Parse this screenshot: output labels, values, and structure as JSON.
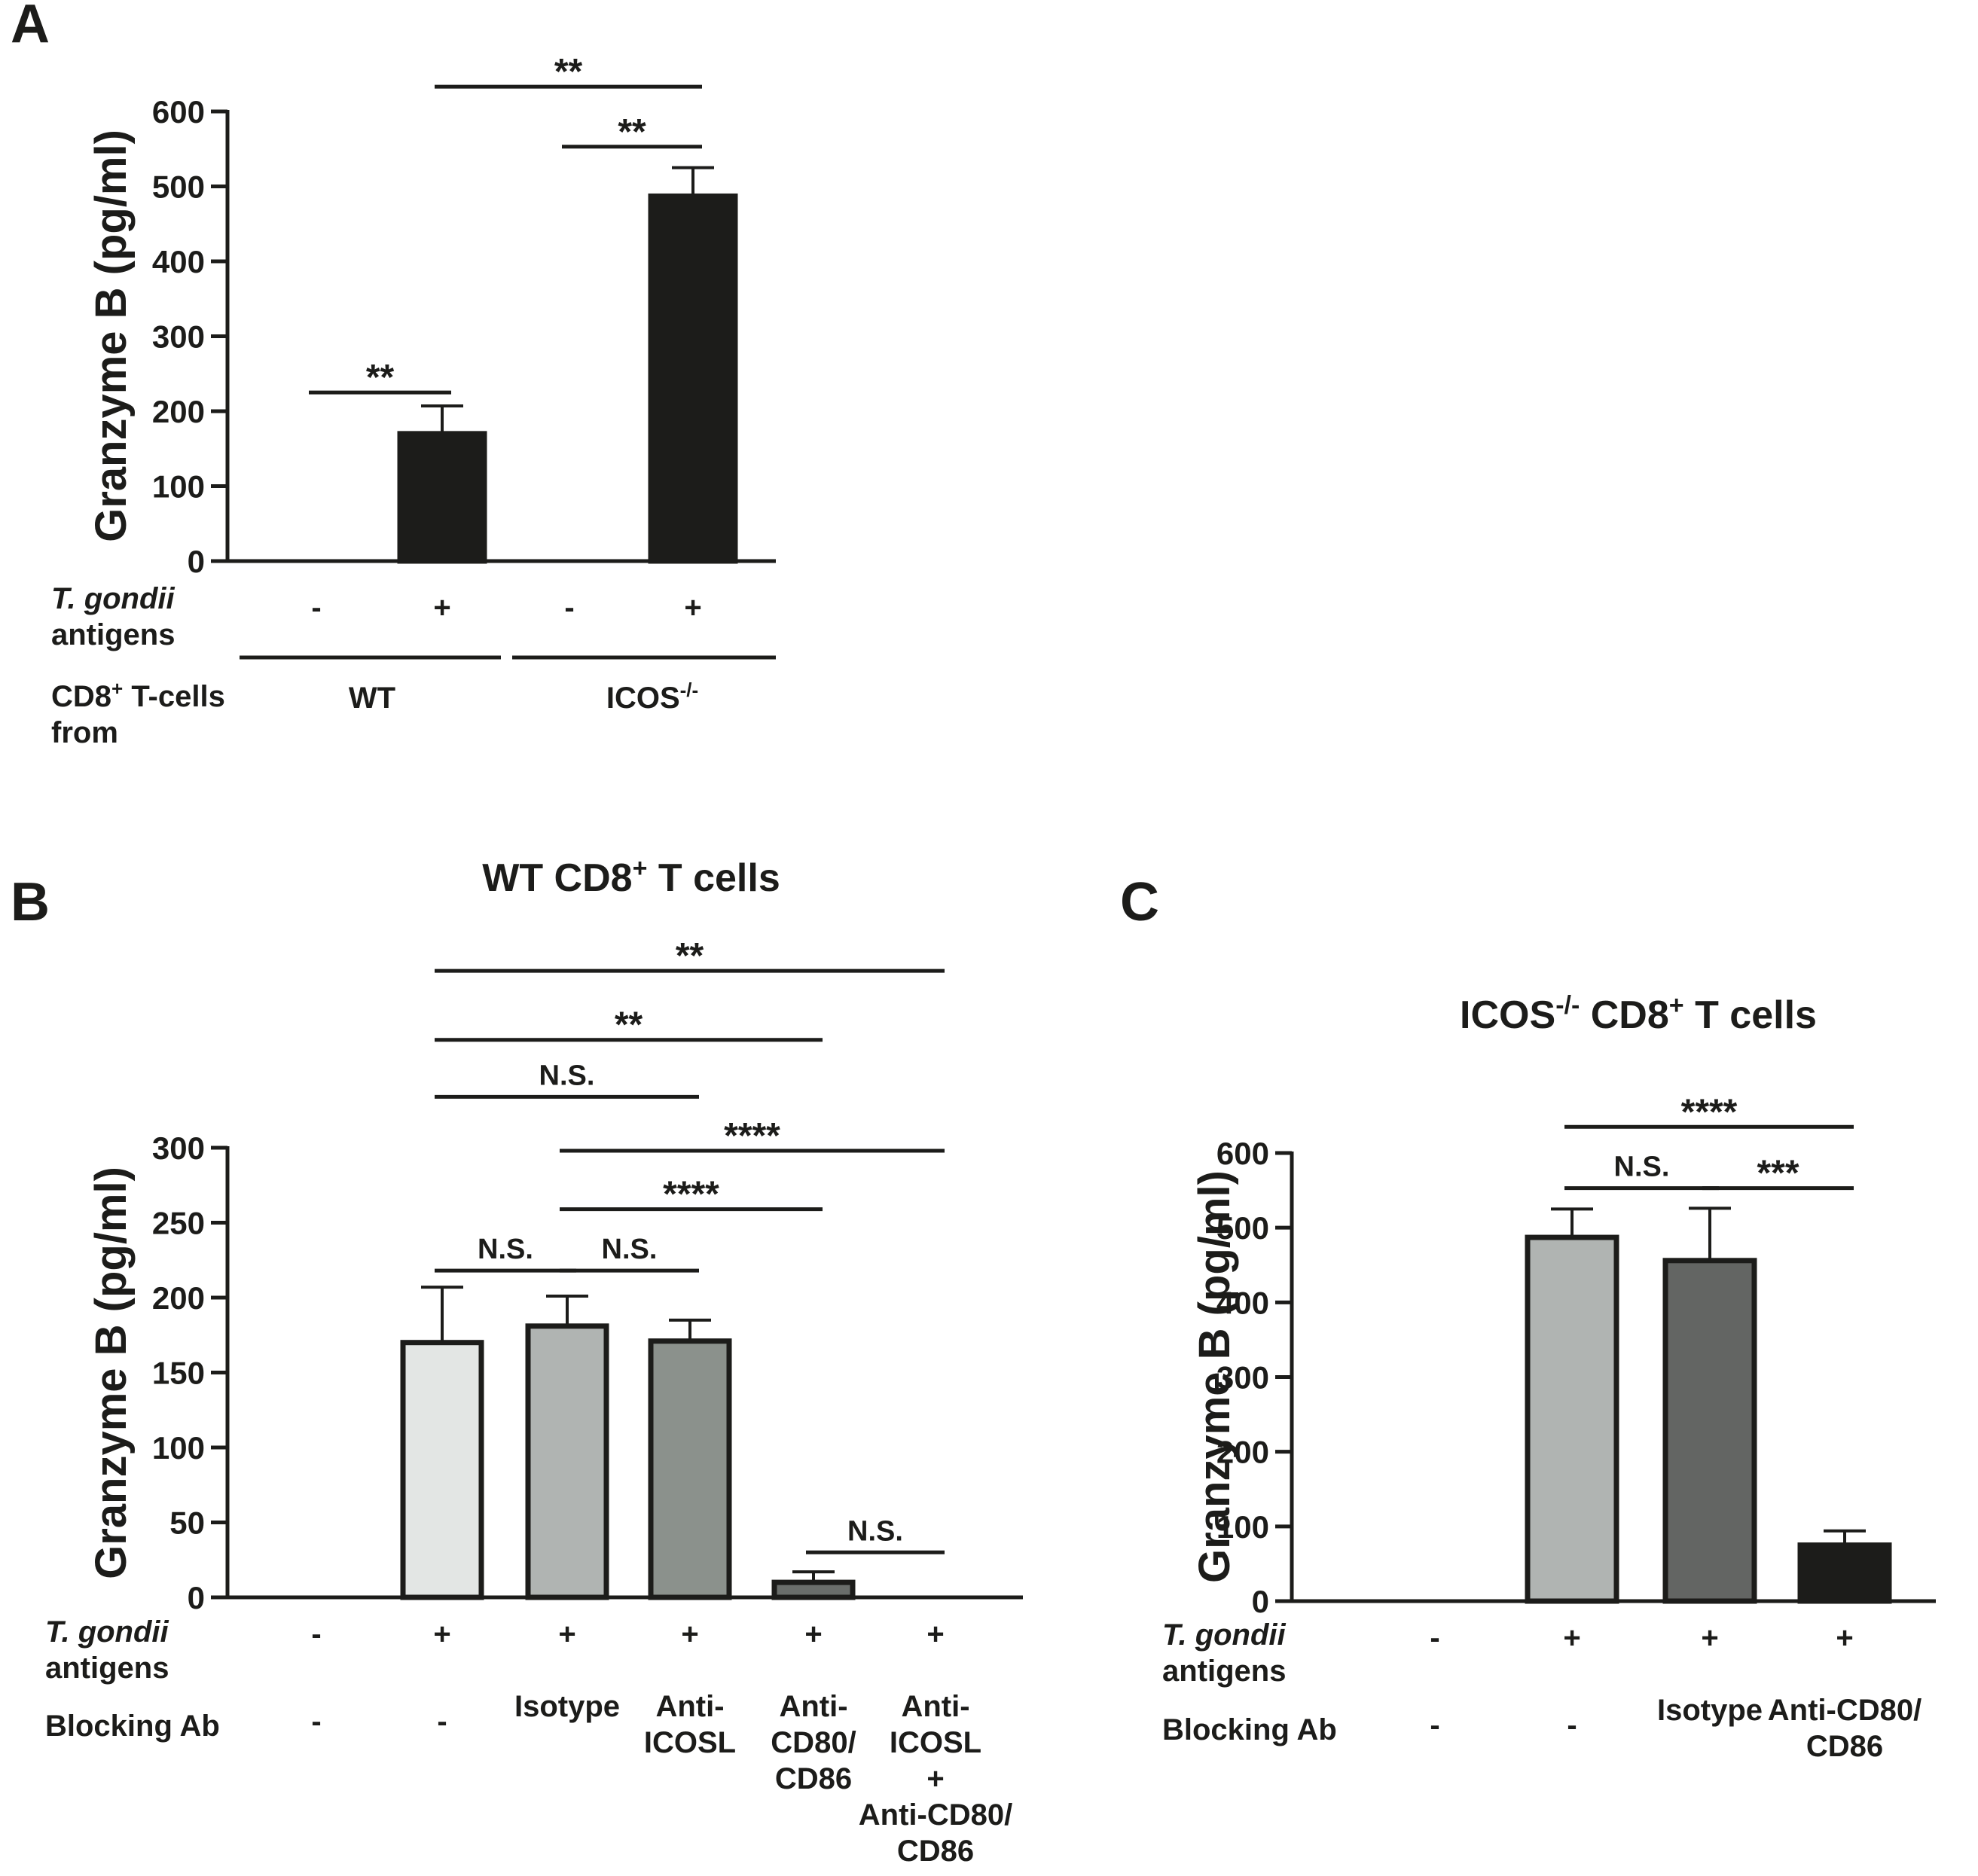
{
  "chart_data": [
    {
      "type": "bar",
      "panel_label": "A",
      "title": "",
      "ylabel": "Granzyme B (pg/ml)",
      "ylim": [
        0,
        600
      ],
      "yticks": [
        "0",
        "100",
        "200",
        "300",
        "400",
        "500",
        "600"
      ],
      "categories": [
        "WT -",
        "WT +",
        "ICOS-/- -",
        "ICOS-/- +"
      ],
      "values": [
        0,
        170,
        0,
        487
      ],
      "errors": [
        0,
        37,
        0,
        38
      ],
      "bar_colors": [
        "#1c1c1a",
        "#1c1c1a",
        "#1c1c1a",
        "#1c1c1a"
      ],
      "row_labels": [
        {
          "italic": "T. gondii",
          "rest": "antigens",
          "values": [
            "-",
            "+",
            "-",
            "+"
          ]
        }
      ],
      "group_row": {
        "label_line1": "CD8",
        "label_sup": "+",
        "label_line1_rest": " T-cells",
        "label_line2": "from",
        "groups": [
          {
            "main": "WT",
            "sup": ""
          },
          {
            "main": "ICOS",
            "sup": "-/-"
          }
        ]
      },
      "significance": [
        {
          "from": 0,
          "to": 1,
          "label": "**",
          "y": 225
        },
        {
          "from": 2,
          "to": 3,
          "label": "**",
          "y": 553
        },
        {
          "from": 1,
          "to": 3,
          "label": "**",
          "y": 633
        }
      ]
    },
    {
      "type": "bar",
      "panel_label": "B",
      "title": "WT CD8",
      "title_sup": "+",
      "title_rest": " T cells",
      "ylabel": "Granzyme B (pg/ml)",
      "ylim": [
        0,
        300
      ],
      "yticks": [
        "0",
        "50",
        "100",
        "150",
        "200",
        "250",
        "300"
      ],
      "categories": [
        "-",
        "-",
        "Isotype",
        "Anti-ICOSL",
        "Anti-CD80/CD86",
        "Anti-ICOSL + Anti-CD80/CD86"
      ],
      "values": [
        0,
        170,
        181,
        171,
        10,
        0
      ],
      "errors": [
        0,
        37,
        20,
        14,
        7,
        0
      ],
      "bar_colors": [
        "#ffffff",
        "#e3e6e4",
        "#b0b4b2",
        "#8b918c",
        "#6a6e6b",
        "#1c1c1a"
      ],
      "row_labels": [
        {
          "italic": "T. gondii",
          "rest": "antigens",
          "values": [
            "-",
            "+",
            "+",
            "+",
            "+",
            "+"
          ]
        },
        {
          "label": "Blocking Ab",
          "values": [
            [
              "-"
            ],
            [
              "-"
            ],
            [
              "Isotype"
            ],
            [
              "Anti-",
              "ICOSL"
            ],
            [
              "Anti-",
              "CD80/",
              "CD86"
            ],
            [
              "Anti-",
              "ICOSL",
              "+",
              "Anti-CD80/",
              "CD86"
            ]
          ]
        }
      ],
      "significance": [
        {
          "from": 1,
          "to": 2,
          "label": "N.S.",
          "y": 218
        },
        {
          "from": 2,
          "to": 3,
          "label": "N.S.",
          "y": 218
        },
        {
          "from": 2,
          "to": 4,
          "label": "****",
          "y": 259
        },
        {
          "from": 2,
          "to": 5,
          "label": "****",
          "y": 298
        },
        {
          "from": 4,
          "to": 5,
          "label": "N.S.",
          "y": 30
        },
        {
          "from": 1,
          "to": 3,
          "label": "N.S.",
          "y": 334
        },
        {
          "from": 1,
          "to": 4,
          "label": "**",
          "y": 372
        },
        {
          "from": 1,
          "to": 5,
          "label": "**",
          "y": 418
        }
      ]
    },
    {
      "type": "bar",
      "panel_label": "C",
      "title": "ICOS",
      "title_sup": "-/-",
      "title_rest": " CD8",
      "title_sup2": "+",
      "title_rest2": " T cells",
      "ylabel": "Granzyme B (pg/ml)",
      "ylim": [
        0,
        600
      ],
      "yticks": [
        "0",
        "100",
        "200",
        "300",
        "400",
        "500",
        "600"
      ],
      "categories": [
        "-",
        "-",
        "Isotype",
        "Anti-CD80/CD86"
      ],
      "values": [
        0,
        487,
        456,
        75
      ],
      "errors": [
        0,
        38,
        70,
        19
      ],
      "bar_colors": [
        "#ffffff",
        "#b0b4b2",
        "#636563",
        "#1c1c1a"
      ],
      "row_labels": [
        {
          "italic": "T. gondii",
          "rest": "antigens",
          "values": [
            "-",
            "+",
            "+",
            "+"
          ]
        },
        {
          "label": "Blocking Ab",
          "values": [
            [
              "-"
            ],
            [
              "-"
            ],
            [
              "Isotype"
            ],
            [
              "Anti-CD80/",
              "CD86"
            ]
          ]
        }
      ],
      "significance": [
        {
          "from": 1,
          "to": 2,
          "label": "N.S.",
          "y": 553
        },
        {
          "from": 2,
          "to": 3,
          "label": "***",
          "y": 553
        },
        {
          "from": 1,
          "to": 3,
          "label": "****",
          "y": 635
        }
      ]
    }
  ]
}
